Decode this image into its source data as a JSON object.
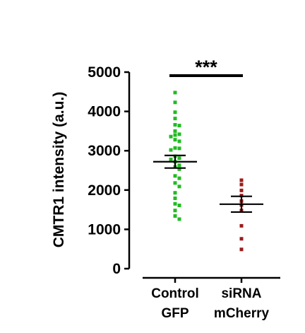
{
  "chart_data": {
    "type": "scatter",
    "subtype": "dot-plot-with-mean-sem",
    "ylabel": "CMTR1 intensity (a.u.)",
    "ylim": [
      0,
      5000
    ],
    "yticks": [
      {
        "value": 0,
        "label": "0"
      },
      {
        "value": 1000,
        "label": "1000"
      },
      {
        "value": 2000,
        "label": "2000"
      },
      {
        "value": 3000,
        "label": "3000"
      },
      {
        "value": 4000,
        "label": "4000"
      },
      {
        "value": 5000,
        "label": "5000"
      }
    ],
    "grid": false,
    "legend": "none",
    "groups": [
      {
        "label_line1": "Control",
        "label_line2": "GFP",
        "color": "#22bb22",
        "mean": 2720,
        "sem_low": 2560,
        "sem_high": 2880,
        "values": [
          4480,
          4230,
          3980,
          3820,
          3660,
          3640,
          3500,
          3420,
          3400,
          3360,
          3280,
          3240,
          3070,
          3060,
          3020,
          2860,
          2810,
          2780,
          2720,
          2630,
          2590,
          2530,
          2360,
          2300,
          2180,
          2090,
          1930,
          1790,
          1650,
          1610,
          1480,
          1340,
          1260
        ]
      },
      {
        "label_line1": "siRNA",
        "label_line2": "mCherry",
        "color": "#9b1c1c",
        "mean": 1640,
        "sem_low": 1440,
        "sem_high": 1840,
        "values": [
          2250,
          2140,
          1990,
          1860,
          1720,
          1620,
          1480,
          1090,
          760,
          490
        ]
      }
    ],
    "significance": {
      "label": "***",
      "between": [
        0,
        1
      ]
    }
  }
}
